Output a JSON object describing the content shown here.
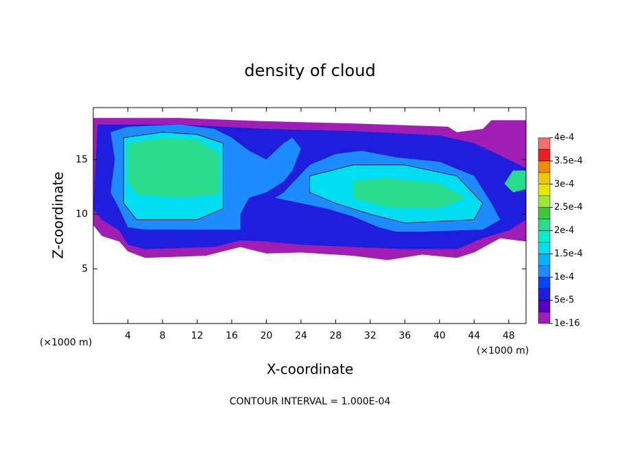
{
  "chart_data": {
    "type": "contour",
    "title": "density of cloud",
    "xlabel": "X-coordinate",
    "ylabel": "Z-coordinate",
    "x_unit": "(×1000 m)",
    "footer": "CONTOUR INTERVAL = 1.000E-04",
    "xlim": [
      0,
      50
    ],
    "ylim": [
      0,
      19.75
    ],
    "xticks": [
      4,
      8,
      12,
      16,
      20,
      24,
      28,
      32,
      36,
      40,
      44,
      48
    ],
    "yticks": [
      5,
      10,
      15
    ],
    "colorbar": {
      "levels": [
        {
          "value": 1e-16,
          "label": "1e-16"
        },
        {
          "value": 5e-05,
          "label": "5e-5"
        },
        {
          "value": 0.0001,
          "label": "1e-4"
        },
        {
          "value": 0.00015,
          "label": "1.5e-4"
        },
        {
          "value": 0.0002,
          "label": "2e-4"
        },
        {
          "value": 0.00025,
          "label": "2.5e-4"
        },
        {
          "value": 0.0003,
          "label": "3e-4"
        },
        {
          "value": 0.00035,
          "label": "3.5e-4"
        },
        {
          "value": 0.0004,
          "label": "4e-4"
        }
      ],
      "colors": [
        "#a01eb4",
        "#5a00c8",
        "#1e1edc",
        "#0046ff",
        "#1e8cff",
        "#00b4ff",
        "#00dcf0",
        "#00f0c8",
        "#28dc8c",
        "#3cc83c",
        "#a0e632",
        "#e6e600",
        "#f0c800",
        "#f08c00",
        "#f01e1e",
        "#f07070"
      ]
    },
    "regions": [
      {
        "band": 0,
        "x": [
          0,
          10,
          20,
          30,
          41,
          42,
          45,
          46,
          50,
          50,
          47,
          44,
          42,
          38,
          34,
          30,
          24,
          20,
          17,
          13,
          6,
          4,
          3,
          1,
          0
        ],
        "z": [
          18.8,
          18.8,
          18.5,
          18.3,
          18.0,
          17.5,
          17.8,
          18.6,
          18.6,
          7.5,
          7.8,
          6.5,
          6.0,
          6.3,
          5.8,
          6.2,
          6.5,
          6.4,
          7.0,
          6.2,
          6.0,
          6.6,
          7.5,
          8.0,
          9.0
        ]
      },
      {
        "band": 2,
        "x": [
          0.5,
          10,
          20,
          30,
          40,
          44,
          48,
          50,
          50,
          48,
          45,
          42,
          36,
          30,
          24,
          20,
          17,
          14,
          6,
          4,
          3,
          1,
          0
        ],
        "z": [
          18.2,
          18.2,
          17.8,
          17.6,
          17.2,
          16.5,
          15.0,
          14.2,
          9.5,
          8.5,
          7.8,
          6.8,
          6.8,
          7.0,
          7.2,
          7.5,
          7.6,
          7.0,
          6.8,
          7.2,
          8.5,
          9.5,
          10.5
        ]
      },
      {
        "band": 4,
        "x": [
          2,
          4,
          10,
          14,
          16,
          18,
          20,
          22,
          23,
          24,
          23,
          22,
          20,
          18,
          17,
          17,
          14,
          6,
          4,
          3,
          2,
          2.5
        ],
        "z": [
          17.5,
          18.0,
          18.2,
          17.8,
          17.0,
          15.8,
          15.0,
          16.5,
          17.0,
          16.0,
          14.0,
          13.0,
          12.0,
          11.5,
          10.0,
          8.6,
          8.6,
          8.6,
          8.8,
          10.5,
          12,
          15
        ]
      },
      {
        "band": 4,
        "x": [
          22,
          25,
          28,
          31,
          35,
          40,
          44,
          46,
          47,
          45,
          38,
          35,
          33,
          30,
          27,
          24,
          21
        ],
        "z": [
          12,
          14.5,
          15.5,
          15.8,
          15.2,
          14.8,
          13.5,
          11,
          9.5,
          8.6,
          8.4,
          8.4,
          8.8,
          9.8,
          10.5,
          11,
          11.5
        ]
      },
      {
        "band": 6,
        "x": [
          3.5,
          8,
          12,
          15,
          15,
          12,
          5,
          3.5
        ],
        "z": [
          17.0,
          17.5,
          17.3,
          16.5,
          10.5,
          9.5,
          9.5,
          11
        ]
      },
      {
        "band": 6,
        "x": [
          25,
          30,
          36,
          42,
          45,
          44,
          36,
          32,
          28,
          25
        ],
        "z": [
          13.5,
          14.5,
          14.5,
          13.5,
          11,
          9.5,
          9.2,
          10,
          11,
          12
        ]
      },
      {
        "band": 8,
        "x": [
          4,
          8,
          12,
          14.5,
          14.5,
          10,
          5,
          4
        ],
        "z": [
          16.5,
          17.0,
          16.8,
          15.5,
          11.8,
          11.5,
          11.8,
          13
        ]
      },
      {
        "band": 8,
        "x": [
          30,
          34,
          40,
          43,
          40,
          34,
          30
        ],
        "z": [
          13,
          13.3,
          12.8,
          11.5,
          10.5,
          10.6,
          11.5
        ]
      },
      {
        "band": 8,
        "x": [
          47.5,
          48.5,
          50,
          50,
          48.5
        ],
        "z": [
          12.8,
          14,
          14,
          12.3,
          12
        ]
      }
    ]
  }
}
